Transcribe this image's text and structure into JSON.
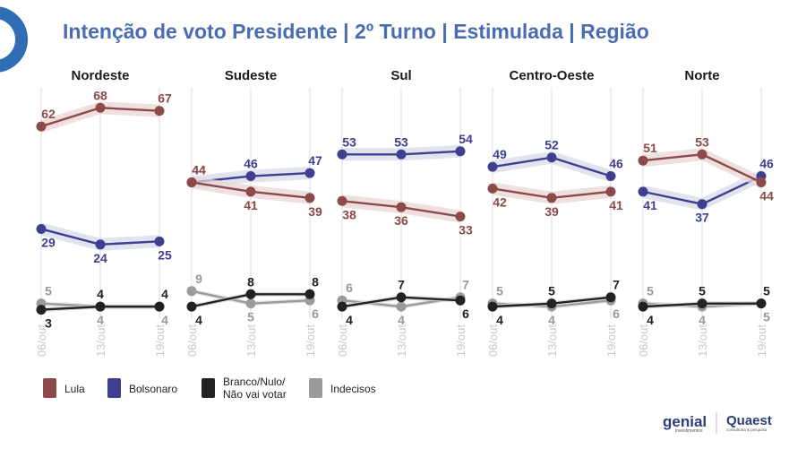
{
  "title": "Intenção de voto Presidente | 2º Turno | Estimulada | Região",
  "colors": {
    "title": "#4a6cb0",
    "accent_circle": "#2f6db5",
    "lula": "#8c4a4a",
    "lula_band": "#e9d6d6",
    "bolsonaro": "#3f3f8f",
    "bolsonaro_band": "#d7d9ea",
    "branco": "#222222",
    "branco_band": "#d5d5d5",
    "indecisos": "#9a9a9a",
    "indecisos_band": "#dddddd",
    "grid": "#e3e3e3",
    "tick": "#c8c8c8"
  },
  "legend": [
    {
      "key": "lula",
      "label": "Lula"
    },
    {
      "key": "bolsonaro",
      "label": "Bolsonaro"
    },
    {
      "key": "branco",
      "label": "Branco/Nulo/\nNão vai votar"
    },
    {
      "key": "indecisos",
      "label": "Indecisos"
    }
  ],
  "logos": {
    "genial": "genial",
    "genial_sub": "investimentos",
    "quaest": "Quaest",
    "quaest_sub": "consultoria & pesquisa"
  },
  "chart_data": {
    "type": "line",
    "x": [
      "06/out",
      "13/out",
      "19/out"
    ],
    "ylim": [
      0,
      75
    ],
    "panels": [
      {
        "region": "Nordeste",
        "series": [
          {
            "key": "lula",
            "name": "Lula",
            "values": [
              62,
              68,
              67
            ]
          },
          {
            "key": "bolsonaro",
            "name": "Bolsonaro",
            "values": [
              29,
              24,
              25
            ]
          },
          {
            "key": "branco",
            "name": "Branco/Nulo/Não vai votar",
            "values": [
              3,
              4,
              4
            ]
          },
          {
            "key": "indecisos",
            "name": "Indecisos",
            "values": [
              5,
              4,
              4
            ]
          }
        ]
      },
      {
        "region": "Sudeste",
        "series": [
          {
            "key": "lula",
            "name": "Lula",
            "values": [
              44,
              41,
              39
            ]
          },
          {
            "key": "bolsonaro",
            "name": "Bolsonaro",
            "values": [
              44,
              46,
              47
            ]
          },
          {
            "key": "branco",
            "name": "Branco/Nulo/Não vai votar",
            "values": [
              4,
              8,
              8
            ]
          },
          {
            "key": "indecisos",
            "name": "Indecisos",
            "values": [
              9,
              5,
              6
            ]
          }
        ]
      },
      {
        "region": "Sul",
        "series": [
          {
            "key": "lula",
            "name": "Lula",
            "values": [
              38,
              36,
              33
            ]
          },
          {
            "key": "bolsonaro",
            "name": "Bolsonaro",
            "values": [
              53,
              53,
              54
            ]
          },
          {
            "key": "branco",
            "name": "Branco/Nulo/Não vai votar",
            "values": [
              4,
              7,
              6
            ]
          },
          {
            "key": "indecisos",
            "name": "Indecisos",
            "values": [
              6,
              4,
              7
            ]
          }
        ]
      },
      {
        "region": "Centro-Oeste",
        "series": [
          {
            "key": "lula",
            "name": "Lula",
            "values": [
              42,
              39,
              41
            ]
          },
          {
            "key": "bolsonaro",
            "name": "Bolsonaro",
            "values": [
              49,
              52,
              46
            ]
          },
          {
            "key": "branco",
            "name": "Branco/Nulo/Não vai votar",
            "values": [
              4,
              5,
              7
            ]
          },
          {
            "key": "indecisos",
            "name": "Indecisos",
            "values": [
              5,
              4,
              6
            ]
          }
        ]
      },
      {
        "region": "Norte",
        "series": [
          {
            "key": "lula",
            "name": "Lula",
            "values": [
              51,
              53,
              44
            ]
          },
          {
            "key": "bolsonaro",
            "name": "Bolsonaro",
            "values": [
              41,
              37,
              46
            ]
          },
          {
            "key": "branco",
            "name": "Branco/Nulo/Não vai votar",
            "values": [
              4,
              5,
              5
            ]
          },
          {
            "key": "indecisos",
            "name": "Indecisos",
            "values": [
              5,
              4,
              5
            ]
          }
        ]
      }
    ]
  }
}
